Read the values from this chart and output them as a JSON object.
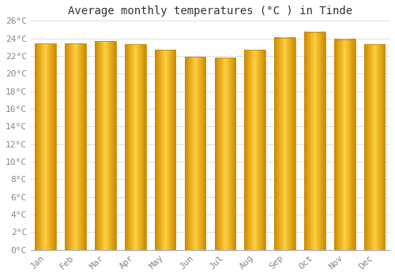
{
  "title": "Average monthly temperatures (°C ) in Tinde",
  "months": [
    "Jan",
    "Feb",
    "Mar",
    "Apr",
    "May",
    "Jun",
    "Jul",
    "Aug",
    "Sep",
    "Oct",
    "Nov",
    "Dec"
  ],
  "values": [
    23.4,
    23.4,
    23.7,
    23.3,
    22.7,
    21.9,
    21.8,
    22.7,
    24.1,
    24.7,
    23.9,
    23.3
  ],
  "bar_color_main": "#FFAA00",
  "bar_color_highlight": "#FFD040",
  "bar_color_edge": "#CC8800",
  "background_color": "#ffffff",
  "grid_color": "#dddddd",
  "ylim": [
    0,
    26
  ],
  "yticks": [
    0,
    2,
    4,
    6,
    8,
    10,
    12,
    14,
    16,
    18,
    20,
    22,
    24,
    26
  ],
  "ytick_labels": [
    "0°C",
    "2°C",
    "4°C",
    "6°C",
    "8°C",
    "10°C",
    "12°C",
    "14°C",
    "16°C",
    "18°C",
    "20°C",
    "22°C",
    "24°C",
    "26°C"
  ],
  "title_fontsize": 10,
  "tick_fontsize": 8,
  "font_family": "monospace",
  "bar_width": 0.7
}
